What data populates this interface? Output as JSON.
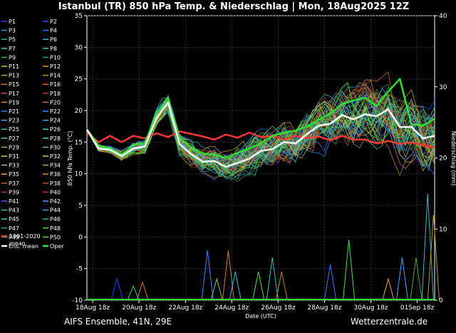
{
  "chart_data": {
    "type": "line",
    "title": "Istanbul  (TR)  850 hPa Temp. & Niederschlag | Mon, 18Aug2025 12Z",
    "xlabel": "Date (UTC)",
    "ylabel": "850 hPa Temp. (°C)",
    "y2label": "Niederschlag (mm)",
    "ylim": [
      -10,
      35
    ],
    "y2lim": [
      0,
      40
    ],
    "yticks": [
      "35",
      "30",
      "25",
      "20",
      "15",
      "10",
      "5",
      "0",
      "-5",
      "-10"
    ],
    "y2ticks": [
      "40",
      "30",
      "20",
      "10",
      "0"
    ],
    "xticks": [
      "18Aug 18z",
      "20Aug 18z",
      "22Aug 18z",
      "24Aug 18z",
      "26Aug 18z",
      "28Aug 18z",
      "30Aug 18z",
      "01Sep 18z"
    ],
    "xticks_days": [
      0.25,
      2.25,
      4.25,
      6.25,
      8.25,
      10.25,
      12.25,
      14.25
    ],
    "x_days_range": [
      0,
      15
    ],
    "grid": true,
    "legend_placement": "left",
    "members": [
      "P1",
      "P2",
      "P3",
      "P4",
      "P5",
      "P6",
      "P7",
      "P8",
      "P9",
      "P10",
      "P11",
      "P12",
      "P13",
      "P14",
      "P15",
      "P16",
      "P17",
      "P18",
      "P19",
      "P20",
      "P21",
      "P22",
      "P23",
      "P24",
      "P25",
      "P26",
      "P27",
      "P28",
      "P29",
      "P30",
      "P31",
      "P32",
      "P33",
      "P34",
      "P35",
      "P36",
      "P37",
      "P38",
      "P39",
      "P40",
      "P41",
      "P42",
      "P43",
      "P44",
      "P45",
      "P46",
      "P47",
      "P48",
      "P49",
      "P50"
    ],
    "member_colors": [
      "#1e3cff",
      "#1e5aff",
      "#2a9df4",
      "#3f6fe8",
      "#20b2aa",
      "#3cb8c8",
      "#1ec8c8",
      "#2fd07a",
      "#30c030",
      "#22aa44",
      "#d4c21c",
      "#cfa318",
      "#b6a020",
      "#c08a10",
      "#d87a20",
      "#d26a10",
      "#d25020",
      "#c04010",
      "#e08040",
      "#d07050",
      "#3c78ff",
      "#2a8cff",
      "#3ab4ff",
      "#33bbdd",
      "#40c0a0",
      "#37d0c0",
      "#4cd09a",
      "#3ee04a",
      "#7ad030",
      "#58c840",
      "#d4d44a",
      "#cccc40",
      "#c8b860",
      "#d0a040",
      "#e8a030",
      "#d88030",
      "#c86a3a",
      "#b85030",
      "#a04020",
      "#c83020",
      "#3c5aff",
      "#4aa0ff",
      "#20c0e0",
      "#40a0c0",
      "#2ccca0",
      "#30c060",
      "#24a060",
      "#40d840",
      "#3ca83c",
      "#50e030"
    ],
    "series": [
      {
        "name": "Ens. mean",
        "color": "#ffffff",
        "y2": false,
        "width": 2.5,
        "x": [
          0,
          0.5,
          1,
          1.5,
          2,
          2.5,
          3,
          3.5,
          4,
          4.5,
          5,
          5.5,
          6,
          6.5,
          7,
          7.5,
          8,
          8.5,
          9,
          9.5,
          10,
          10.5,
          11,
          11.5,
          12,
          12.5,
          13,
          13.5,
          14,
          14.5,
          15
        ],
        "y": [
          17,
          14,
          13.8,
          12.8,
          14,
          14.3,
          18.8,
          21.3,
          14.7,
          13.1,
          11.9,
          12,
          11.1,
          11.7,
          12.4,
          13.6,
          13.9,
          15,
          14.8,
          16.3,
          17.6,
          17.9,
          19.3,
          18.6,
          19.4,
          19.1,
          20.2,
          17.4,
          17.4,
          15.6,
          16
        ]
      },
      {
        "name": "Oper",
        "color": "#30e030",
        "y2": false,
        "width": 2.5,
        "x": [
          0,
          0.5,
          1,
          1.5,
          2,
          2.5,
          3,
          3.5,
          4,
          4.5,
          5,
          5.5,
          6,
          6.5,
          7,
          7.5,
          8,
          8.5,
          9,
          9.5,
          10,
          10.5,
          11,
          11.5,
          12,
          12.5,
          13,
          13.5,
          14,
          14.5,
          15
        ],
        "y": [
          17,
          14.5,
          14,
          13,
          14.6,
          14.8,
          19.5,
          22,
          15.5,
          14.2,
          13.2,
          13,
          12.5,
          13.3,
          14,
          14.8,
          16,
          16.5,
          16.8,
          17.5,
          18.5,
          19.5,
          21,
          21.6,
          22,
          20.7,
          23,
          25,
          17.8,
          17.6,
          18.7
        ]
      },
      {
        "name": "1991-2020 mean",
        "color": "#ff3838",
        "y2": false,
        "width": 2.5,
        "x": [
          0,
          0.5,
          1,
          1.5,
          2,
          2.5,
          3,
          3.5,
          4,
          4.5,
          5,
          5.5,
          6,
          6.5,
          7,
          7.5,
          8,
          8.5,
          9,
          9.5,
          10,
          10.5,
          11,
          11.5,
          12,
          12.5,
          13,
          13.5,
          14,
          14.5,
          15
        ],
        "y": [
          16.5,
          15,
          16,
          15,
          16,
          15.6,
          16.4,
          15.8,
          16.7,
          16.3,
          15.9,
          15.4,
          16.2,
          15.7,
          16.5,
          15.8,
          16,
          15.4,
          16,
          15.6,
          15.9,
          15.3,
          16,
          15.4,
          15.4,
          14.8,
          15.2,
          14.7,
          15,
          14.5,
          14.2
        ]
      }
    ],
    "precip_spikes": [
      {
        "day": 1.3,
        "mm": 3
      },
      {
        "day": 2.0,
        "mm": 2
      },
      {
        "day": 2.4,
        "mm": 2.5
      },
      {
        "day": 5.2,
        "mm": 7
      },
      {
        "day": 5.6,
        "mm": 3
      },
      {
        "day": 6.1,
        "mm": 7
      },
      {
        "day": 6.4,
        "mm": 4
      },
      {
        "day": 7.4,
        "mm": 4
      },
      {
        "day": 8.0,
        "mm": 6
      },
      {
        "day": 8.4,
        "mm": 4
      },
      {
        "day": 10.5,
        "mm": 5
      },
      {
        "day": 11.3,
        "mm": 8.5
      },
      {
        "day": 13.0,
        "mm": 3
      },
      {
        "day": 13.6,
        "mm": 6
      },
      {
        "day": 14.2,
        "mm": 6
      },
      {
        "day": 14.7,
        "mm": 15
      },
      {
        "day": 14.95,
        "mm": 12
      }
    ],
    "legend_extra": [
      {
        "name": "Ens. mean",
        "color": "#ffffff"
      },
      {
        "name": "Oper",
        "color": "#30e030"
      }
    ],
    "climate_label_line1": "1991-2020",
    "climate_label_line2": "mean",
    "climate_color": "#ff3838"
  },
  "footer": {
    "left": "AIFS Ensemble, 41N, 29E",
    "right": "Wetterzentrale.de"
  }
}
